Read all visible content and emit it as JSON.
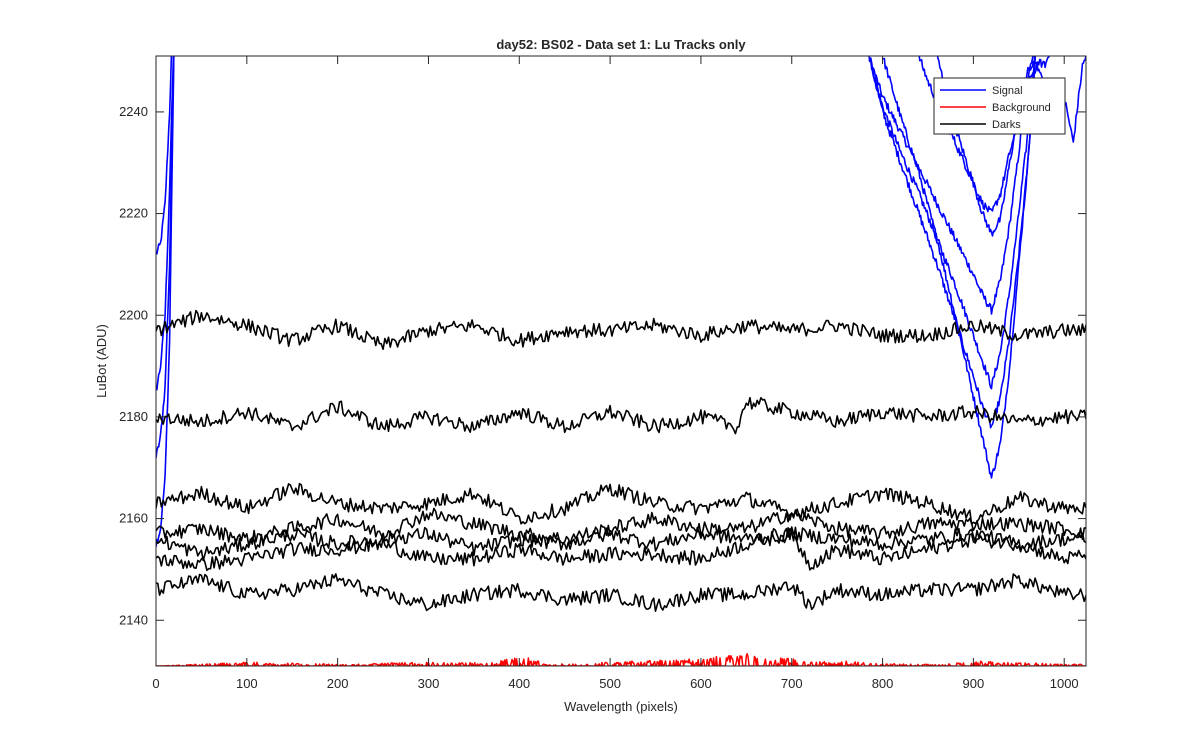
{
  "chart_data": {
    "type": "line",
    "title": "day52: BS02 - Data set 1: Lu Tracks only",
    "xlabel": "Wavelength (pixels)",
    "ylabel": "LuBot (ADU)",
    "xlim": [
      0,
      1024
    ],
    "ylim": [
      2131,
      2251
    ],
    "x_ticks": [
      0,
      100,
      200,
      300,
      400,
      500,
      600,
      700,
      800,
      900,
      1000
    ],
    "y_ticks": [
      2140,
      2160,
      2180,
      2200,
      2220,
      2240
    ],
    "grid": false,
    "legend_location": "top-right",
    "legend": [
      {
        "label": "Signal",
        "color": "#0000ff"
      },
      {
        "label": "Background",
        "color": "#ff0000"
      },
      {
        "label": "Darks",
        "color": "#000000"
      }
    ],
    "series": [
      {
        "group": "Signal",
        "color": "#0000ff",
        "x": [
          0,
          5,
          10,
          15,
          18
        ],
        "y": [
          2212,
          2214,
          2222,
          2240,
          2256
        ]
      },
      {
        "group": "Signal",
        "color": "#0000ff",
        "x": [
          0,
          5,
          10,
          15,
          20
        ],
        "y": [
          2185,
          2190,
          2200,
          2225,
          2256
        ]
      },
      {
        "group": "Signal",
        "color": "#0000ff",
        "x": [
          0,
          5,
          10,
          15,
          20
        ],
        "y": [
          2172,
          2176,
          2186,
          2210,
          2256
        ]
      },
      {
        "group": "Signal",
        "color": "#0000ff",
        "x": [
          0,
          5,
          10,
          15,
          20
        ],
        "y": [
          2155,
          2158,
          2168,
          2195,
          2256
        ]
      },
      {
        "group": "Signal",
        "color": "#0000ff",
        "x": [
          785,
          800,
          820,
          840,
          860,
          880,
          900,
          910,
          920,
          930,
          940,
          950,
          960,
          970
        ],
        "y": [
          2251,
          2243,
          2236,
          2229,
          2222,
          2215,
          2208,
          2204,
          2201,
          2207,
          2218,
          2232,
          2246,
          2256
        ]
      },
      {
        "group": "Signal",
        "color": "#0000ff",
        "x": [
          785,
          800,
          820,
          840,
          860,
          880,
          900,
          910,
          920,
          930,
          940,
          950,
          960,
          970
        ],
        "y": [
          2251,
          2241,
          2232,
          2224,
          2215,
          2206,
          2196,
          2191,
          2186,
          2193,
          2205,
          2220,
          2236,
          2256
        ]
      },
      {
        "group": "Signal",
        "color": "#0000ff",
        "x": [
          785,
          800,
          820,
          840,
          860,
          880,
          900,
          910,
          920,
          930,
          940,
          950,
          960,
          970
        ],
        "y": [
          2251,
          2240,
          2230,
          2220,
          2210,
          2199,
          2188,
          2182,
          2178,
          2184,
          2196,
          2212,
          2230,
          2256
        ]
      },
      {
        "group": "Signal",
        "color": "#0000ff",
        "x": [
          800,
          820,
          840,
          860,
          880,
          900,
          910,
          920,
          930,
          940,
          950,
          960,
          970
        ],
        "y": [
          2251,
          2239,
          2228,
          2215,
          2200,
          2184,
          2176,
          2168,
          2175,
          2190,
          2210,
          2230,
          2256
        ]
      },
      {
        "group": "Signal",
        "color": "#0000ff",
        "x": [
          830,
          850,
          870,
          890,
          900,
          910,
          920,
          930,
          940,
          950,
          960,
          970,
          980,
          990,
          1000,
          1010,
          1020,
          1024
        ],
        "y": [
          2256,
          2246,
          2238,
          2230,
          2226,
          2222,
          2220,
          2224,
          2232,
          2238,
          2246,
          2249,
          2245,
          2242,
          2243,
          2234,
          2249,
          2251
        ]
      },
      {
        "group": "Signal",
        "color": "#0000ff",
        "x": [
          860,
          880,
          900,
          910,
          920,
          930,
          940,
          950,
          960,
          970,
          980,
          990
        ],
        "y": [
          2251,
          2237,
          2226,
          2220,
          2216,
          2219,
          2230,
          2240,
          2248,
          2250,
          2249,
          2256
        ]
      },
      {
        "group": "Background",
        "color": "#ff0000",
        "x": [
          0,
          60,
          90,
          210,
          290,
          370,
          400,
          420,
          430,
          610,
          630,
          650,
          670,
          700,
          720,
          760,
          790,
          860,
          910,
          925,
          990,
          1024
        ],
        "y": [
          2131,
          2131.3,
          2131.5,
          2131.2,
          2131.5,
          2131.4,
          2132.2,
          2131.8,
          2131.2,
          2132,
          2132.5,
          2132.7,
          2132.3,
          2132,
          2131.5,
          2131.6,
          2131.3,
          2131.2,
          2131.6,
          2131.5,
          2131.3,
          2131.2
        ]
      },
      {
        "group": "Darks",
        "color": "#000000",
        "x": [
          0,
          50,
          100,
          150,
          200,
          250,
          300,
          350,
          400,
          450,
          500,
          550,
          600,
          650,
          700,
          750,
          800,
          850,
          900,
          950,
          1000,
          1024
        ],
        "y": [
          2197,
          2200,
          2198,
          2195,
          2198,
          2194,
          2197,
          2198,
          2195,
          2197,
          2197,
          2198,
          2196,
          2198,
          2197,
          2198,
          2196,
          2196,
          2198,
          2196,
          2197,
          2197
        ]
      },
      {
        "group": "Darks",
        "color": "#000000",
        "x": [
          0,
          50,
          100,
          150,
          200,
          250,
          300,
          350,
          400,
          450,
          500,
          550,
          600,
          640,
          650,
          700,
          750,
          800,
          850,
          900,
          950,
          1000,
          1024
        ],
        "y": [
          2180,
          2179,
          2181,
          2178,
          2182,
          2178,
          2180,
          2178,
          2181,
          2178,
          2181,
          2178,
          2180,
          2178,
          2183,
          2181,
          2179,
          2181,
          2180,
          2181,
          2179,
          2180,
          2180
        ]
      },
      {
        "group": "Darks",
        "color": "#000000",
        "x": [
          0,
          50,
          100,
          150,
          200,
          250,
          300,
          350,
          400,
          450,
          500,
          550,
          600,
          650,
          700,
          750,
          800,
          850,
          900,
          950,
          1000,
          1024
        ],
        "y": [
          2163,
          2165,
          2162,
          2166,
          2163,
          2162,
          2163,
          2165,
          2160,
          2162,
          2166,
          2163,
          2162,
          2164,
          2161,
          2163,
          2165,
          2163,
          2160,
          2164,
          2162,
          2162
        ]
      },
      {
        "group": "Darks",
        "color": "#000000",
        "x": [
          0,
          50,
          100,
          150,
          200,
          250,
          300,
          350,
          400,
          450,
          500,
          550,
          600,
          650,
          700,
          750,
          800,
          850,
          900,
          950,
          1000,
          1024
        ],
        "y": [
          2157,
          2158,
          2156,
          2158,
          2160,
          2157,
          2161,
          2159,
          2157,
          2156,
          2158,
          2160,
          2158,
          2158,
          2161,
          2158,
          2157,
          2159,
          2159,
          2159,
          2158,
          2157
        ]
      },
      {
        "group": "Darks",
        "color": "#000000",
        "x": [
          0,
          50,
          100,
          150,
          200,
          250,
          300,
          350,
          400,
          450,
          500,
          550,
          600,
          650,
          700,
          750,
          800,
          850,
          900,
          950,
          1000,
          1024
        ],
        "y": [
          2156,
          2153,
          2155,
          2157,
          2155,
          2156,
          2157,
          2154,
          2156,
          2155,
          2157,
          2155,
          2157,
          2156,
          2157,
          2156,
          2155,
          2156,
          2157,
          2155,
          2156,
          2156
        ]
      },
      {
        "group": "Darks",
        "color": "#000000",
        "x": [
          0,
          50,
          100,
          150,
          200,
          250,
          300,
          350,
          400,
          450,
          500,
          550,
          600,
          650,
          700,
          720,
          750,
          800,
          850,
          900,
          950,
          1000,
          1024
        ],
        "y": [
          2152,
          2151,
          2152,
          2154,
          2154,
          2155,
          2152,
          2152,
          2154,
          2152,
          2153,
          2153,
          2152,
          2155,
          2157,
          2151,
          2154,
          2152,
          2154,
          2156,
          2155,
          2152,
          2153
        ]
      },
      {
        "group": "Darks",
        "color": "#000000",
        "x": [
          0,
          50,
          100,
          150,
          200,
          250,
          300,
          350,
          400,
          450,
          500,
          550,
          600,
          650,
          700,
          720,
          750,
          800,
          850,
          900,
          950,
          1000,
          1024
        ],
        "y": [
          2146,
          2148,
          2145,
          2146,
          2148,
          2145,
          2143,
          2145,
          2146,
          2144,
          2145,
          2143,
          2145,
          2145,
          2147,
          2143,
          2146,
          2145,
          2146,
          2146,
          2148,
          2145,
          2145
        ]
      }
    ]
  }
}
